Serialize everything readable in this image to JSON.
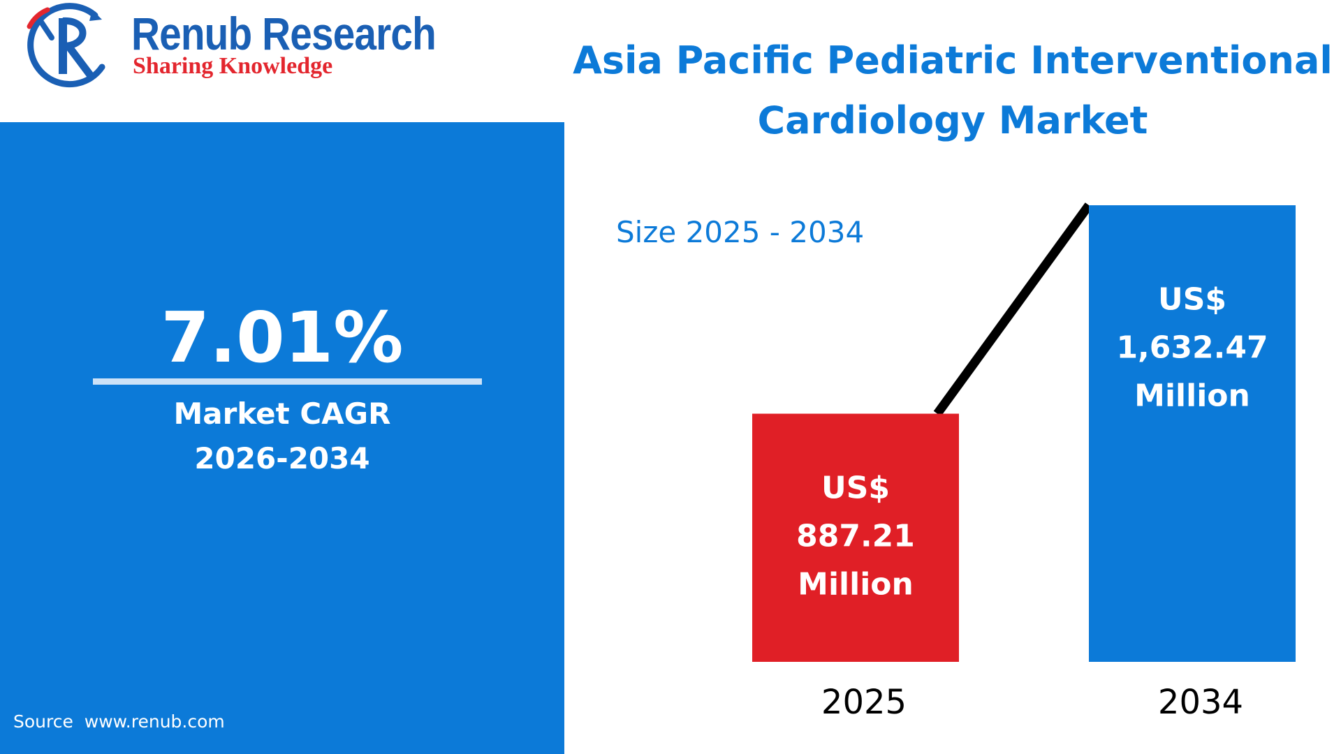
{
  "logo": {
    "name": "Renub Research",
    "tagline": "Sharing Knowledge",
    "colors": {
      "blue": "#1a5fb4",
      "red": "#e3262e"
    }
  },
  "cagr": {
    "value": "7.01%",
    "label_line1": "Market CAGR",
    "label_line2": "2026-2034"
  },
  "source": "Source  www.renub.com",
  "title_line1": "Asia Pacific Pediatric Interventional",
  "title_line2": "Cardiology Market",
  "size_label": "Size 2025 - 2034",
  "colors": {
    "panel_blue": "#0c7ad8",
    "bar_red": "#e01f26",
    "bar_blue": "#0c7ad8",
    "trend_line": "#000000"
  },
  "chart_data": {
    "type": "bar",
    "categories": [
      "2025",
      "2034"
    ],
    "values": [
      887.21,
      1632.47
    ],
    "unit": "US$ Million",
    "ylim": [
      0,
      1800
    ],
    "grid": false,
    "bar_labels": [
      [
        "US$",
        "887.21",
        "Million"
      ],
      [
        "US$",
        "1,632.47",
        "Million"
      ]
    ],
    "bar_colors": [
      "#e01f26",
      "#0c7ad8"
    ],
    "trend_line": true
  }
}
